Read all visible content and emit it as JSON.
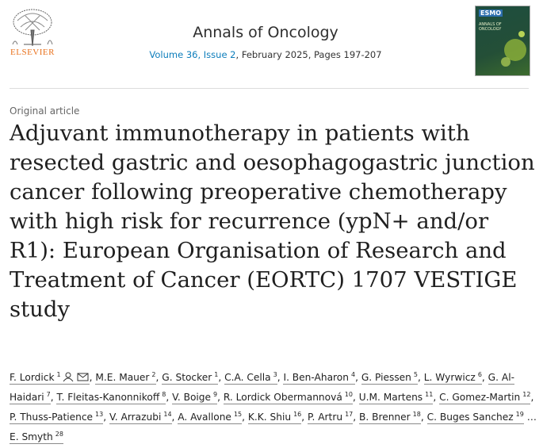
{
  "header": {
    "publisher": "ELSEVIER",
    "journal": "Annals of Oncology",
    "volume_issue": "Volume 36, Issue 2",
    "date_pages": ", February 2025, Pages 197-207",
    "cover": {
      "brand": "ESMO",
      "title": "ANNALS OF ONCOLOGY"
    }
  },
  "article": {
    "type": "Original article",
    "title": "Adjuvant immunotherapy in patients with resected gastric and oesophagogastric junction cancer following preoperative chemotherapy with high risk for recurrence (ypN+ and/or R1): European Organisation of Research and Treatment of Cancer (EORTC) 1707 VESTIGE study",
    "authors_before": [
      {
        "name": "F. Lordick",
        "sup": 1
      },
      {
        "name": "M.E. Mauer",
        "sup": 2
      },
      {
        "name": "G. Stocker",
        "sup": 1
      },
      {
        "name": "C.A. Cella",
        "sup": 3
      },
      {
        "name": "I. Ben-Aharon",
        "sup": 4
      },
      {
        "name": "G. Piessen",
        "sup": 5
      },
      {
        "name": "L. Wyrwicz",
        "sup": 6
      },
      {
        "name": "G. Al-Haidari",
        "sup": 7
      },
      {
        "name": "T. Fleitas-Kanonnikoff",
        "sup": 8
      },
      {
        "name": "V. Boige",
        "sup": 9
      },
      {
        "name": "R. Lordick Obermannová",
        "sup": 10
      },
      {
        "name": "U.M. Martens",
        "sup": 11
      },
      {
        "name": "C. Gomez-Martin",
        "sup": 12
      },
      {
        "name": "P. Thuss-Patience",
        "sup": 13
      },
      {
        "name": "V. Arrazubi",
        "sup": 14
      },
      {
        "name": "A. Avallone",
        "sup": 15
      },
      {
        "name": "K.K. Shiu",
        "sup": 16
      },
      {
        "name": "P. Artru",
        "sup": 17
      },
      {
        "name": "B. Brenner",
        "sup": 18
      },
      {
        "name": "C. Buges Sanchez",
        "sup": 19
      }
    ],
    "truncation": "…",
    "authors_after": [
      {
        "name": "E. Smyth",
        "sup": 28
      }
    ]
  }
}
